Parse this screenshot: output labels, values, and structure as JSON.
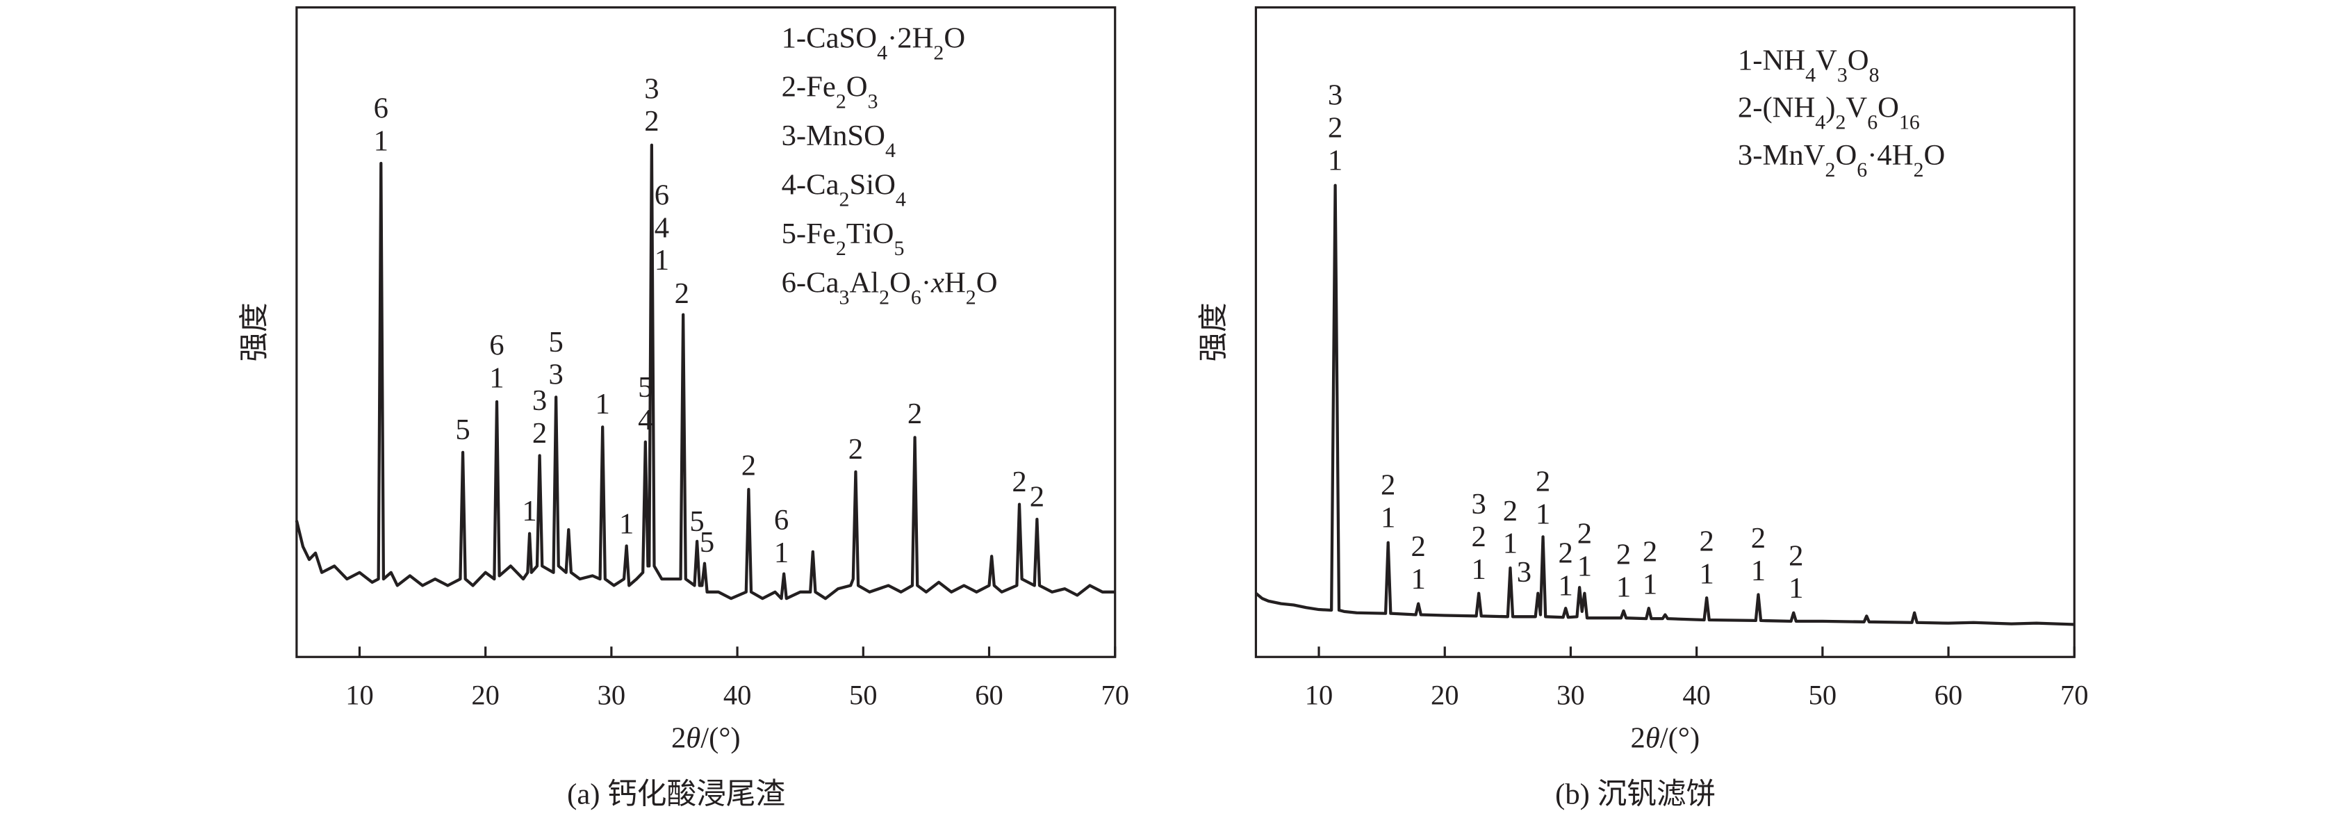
{
  "chart_data": [
    {
      "type": "line",
      "color": "#231f20",
      "xlabel": "2θ/(°)",
      "ylabel": "强度",
      "caption": "(a) 钙化酸浸尾渣",
      "xlim": [
        5,
        70
      ],
      "xticks": [
        10,
        20,
        30,
        40,
        50,
        60,
        70
      ],
      "ylim": [
        0,
        100
      ],
      "legend_entries": [
        "1-CaSO4·2H2O",
        "2-Fe2O3",
        "3-MnSO4",
        "4-Ca2SiO4",
        "5-Fe2TiO5",
        "6-Ca3Al2O6·xH2O"
      ],
      "x": [
        5.0,
        5.5,
        6.0,
        6.5,
        7.0,
        8,
        9,
        10,
        11,
        11.5,
        11.7,
        11.9,
        12.5,
        13,
        14,
        15,
        16,
        17,
        18.0,
        18.2,
        18.4,
        19,
        20,
        20.7,
        20.9,
        21.1,
        22,
        23,
        23.35,
        23.5,
        23.65,
        24.1,
        24.3,
        24.5,
        25.4,
        25.6,
        25.8,
        26.4,
        26.6,
        26.8,
        27.5,
        28.5,
        29.1,
        29.3,
        29.5,
        30.2,
        31.0,
        31.2,
        31.4,
        32.0,
        32.5,
        32.7,
        32.9,
        33.0,
        33.2,
        33.4,
        34,
        35.5,
        35.7,
        35.9,
        36.6,
        36.8,
        37.0,
        37.2,
        37.4,
        37.6,
        38.5,
        39.5,
        40.7,
        40.9,
        41.1,
        42,
        43,
        43.5,
        43.7,
        43.9,
        45,
        45.8,
        46.0,
        46.2,
        47,
        48,
        49.0,
        49.2,
        49.4,
        49.6,
        50.5,
        52,
        53,
        53.9,
        54.1,
        54.3,
        55,
        56,
        57,
        58,
        59,
        60.0,
        60.2,
        60.4,
        61,
        62.2,
        62.4,
        62.6,
        63.6,
        63.8,
        64.0,
        65,
        66,
        67,
        68,
        69,
        70
      ],
      "values": [
        21,
        17,
        15,
        16,
        13,
        14,
        12,
        13,
        11.5,
        12,
        76,
        12,
        13,
        11,
        12.5,
        11,
        12,
        11,
        12,
        31.5,
        12,
        11,
        13,
        12,
        39.3,
        12.5,
        14,
        12,
        13,
        19,
        13,
        14,
        31,
        14,
        13,
        40,
        14,
        13,
        19.6,
        13,
        12,
        12.5,
        12,
        35.4,
        12,
        11,
        12,
        17.1,
        11,
        12,
        13,
        33.1,
        14,
        14,
        78.8,
        14,
        12,
        12,
        52.7,
        12,
        11,
        17.8,
        11,
        11,
        14.4,
        10,
        10,
        9,
        10,
        25.8,
        10,
        9,
        10,
        9,
        12.8,
        9,
        10,
        10,
        16.2,
        10,
        9,
        10.5,
        11,
        12,
        28.5,
        11,
        10,
        11,
        10,
        11,
        33.8,
        11,
        10,
        11.5,
        10,
        11,
        10,
        11,
        15.5,
        11,
        10,
        11,
        23.5,
        12,
        11,
        21.2,
        11,
        10,
        10.5,
        9.5,
        11,
        10,
        10
      ],
      "annotations": [
        {
          "x": 11.7,
          "y": 78,
          "lines": [
            "6",
            "1"
          ]
        },
        {
          "x": 18.2,
          "y": 33.5,
          "lines": [
            "5"
          ]
        },
        {
          "x": 20.9,
          "y": 41.5,
          "lines": [
            "6",
            "1"
          ]
        },
        {
          "x": 23.5,
          "y": 21,
          "lines": [
            "1"
          ]
        },
        {
          "x": 24.3,
          "y": 33,
          "lines": [
            "3",
            "2"
          ]
        },
        {
          "x": 25.6,
          "y": 42,
          "lines": [
            "5",
            "3"
          ]
        },
        {
          "x": 29.3,
          "y": 37.5,
          "lines": [
            "1"
          ]
        },
        {
          "x": 31.2,
          "y": 19,
          "lines": [
            "1"
          ]
        },
        {
          "x": 32.7,
          "y": 35,
          "lines": [
            "5",
            "4"
          ]
        },
        {
          "x": 33.2,
          "y": 81,
          "lines": [
            "3",
            "2"
          ]
        },
        {
          "x": 34.0,
          "y": 59.6,
          "lines": [
            "6",
            "4",
            "1"
          ]
        },
        {
          "x": 35.6,
          "y": 54.5,
          "lines": [
            "2"
          ]
        },
        {
          "x": 36.8,
          "y": 19.4,
          "lines": [
            "5"
          ]
        },
        {
          "x": 37.6,
          "y": 16.2,
          "lines": [
            "5"
          ]
        },
        {
          "x": 40.9,
          "y": 28,
          "lines": [
            "2"
          ]
        },
        {
          "x": 43.5,
          "y": 14.6,
          "lines": [
            "6",
            "1"
          ]
        },
        {
          "x": 49.4,
          "y": 30.5,
          "lines": [
            "2"
          ]
        },
        {
          "x": 54.1,
          "y": 36,
          "lines": [
            "2"
          ]
        },
        {
          "x": 62.4,
          "y": 25.5,
          "lines": [
            "2"
          ]
        },
        {
          "x": 63.8,
          "y": 23.2,
          "lines": [
            "2"
          ]
        }
      ]
    },
    {
      "type": "line",
      "color": "#231f20",
      "xlabel": "2θ/(°)",
      "ylabel": "强度",
      "caption": "(b) 沉钒滤饼",
      "xlim": [
        5,
        70
      ],
      "xticks": [
        10,
        20,
        30,
        40,
        50,
        60,
        70
      ],
      "ylim": [
        0,
        100
      ],
      "legend_entries": [
        "1-NH4V3O8",
        "2-(NH4)2V6O16",
        "3-MnV2O6·4H2O"
      ],
      "x": [
        5.0,
        5.5,
        6,
        7,
        8,
        9,
        10,
        11.0,
        11.3,
        11.6,
        12,
        13,
        15.3,
        15.5,
        15.7,
        17.7,
        17.9,
        18.1,
        20,
        22.5,
        22.7,
        22.9,
        25.0,
        25.2,
        25.4,
        27.2,
        27.4,
        27.6,
        27.8,
        28.0,
        29.4,
        29.6,
        29.8,
        30.5,
        30.7,
        30.9,
        31.1,
        31.3,
        34.0,
        34.2,
        34.4,
        36.0,
        36.2,
        36.4,
        37.3,
        37.5,
        37.7,
        40.6,
        40.8,
        41.0,
        44.7,
        44.9,
        45.1,
        47.5,
        47.7,
        47.9,
        50,
        53.3,
        53.5,
        53.7,
        57.1,
        57.3,
        57.5,
        60,
        62,
        65,
        67,
        70
      ],
      "values": [
        9.8,
        9,
        8.6,
        8.2,
        8,
        7.6,
        7.3,
        7.2,
        72.6,
        7.2,
        7,
        6.8,
        6.7,
        17.6,
        6.7,
        6.5,
        8.2,
        6.5,
        6.4,
        6.3,
        9.8,
        6.3,
        6.2,
        13.7,
        6.2,
        6.2,
        9.8,
        6.5,
        18.5,
        6.2,
        6.1,
        7.5,
        6.1,
        6.2,
        10.7,
        7,
        9.8,
        6,
        6,
        7.1,
        6,
        5.9,
        7.5,
        5.9,
        5.9,
        6.5,
        5.9,
        5.7,
        9.1,
        5.7,
        5.6,
        9.6,
        5.6,
        5.5,
        6.8,
        5.5,
        5.5,
        5.4,
        6.3,
        5.4,
        5.3,
        6.8,
        5.3,
        5.2,
        5.3,
        5.1,
        5.2,
        5.0
      ],
      "annotations": [
        {
          "x": 11.3,
          "y": 75,
          "lines": [
            "3",
            "2",
            "1"
          ]
        },
        {
          "x": 15.5,
          "y": 20,
          "lines": [
            "2",
            "1"
          ]
        },
        {
          "x": 17.9,
          "y": 10.5,
          "lines": [
            "2",
            "1"
          ]
        },
        {
          "x": 22.7,
          "y": 12,
          "lines": [
            "3",
            "2",
            "1"
          ]
        },
        {
          "x": 25.2,
          "y": 16,
          "lines": [
            "2",
            "1"
          ]
        },
        {
          "x": 26.3,
          "y": 11.6,
          "lines": [
            "3"
          ]
        },
        {
          "x": 27.8,
          "y": 20.5,
          "lines": [
            "2",
            "1"
          ]
        },
        {
          "x": 29.6,
          "y": 9.5,
          "lines": [
            "2",
            "1"
          ]
        },
        {
          "x": 31.1,
          "y": 12.5,
          "lines": [
            "2",
            "1"
          ]
        },
        {
          "x": 34.2,
          "y": 9.3,
          "lines": [
            "2",
            "1"
          ]
        },
        {
          "x": 36.3,
          "y": 9.7,
          "lines": [
            "2",
            "1"
          ]
        },
        {
          "x": 40.8,
          "y": 11.3,
          "lines": [
            "2",
            "1"
          ]
        },
        {
          "x": 44.9,
          "y": 11.8,
          "lines": [
            "2",
            "1"
          ]
        },
        {
          "x": 47.9,
          "y": 9.1,
          "lines": [
            "2",
            "1"
          ]
        }
      ]
    }
  ]
}
